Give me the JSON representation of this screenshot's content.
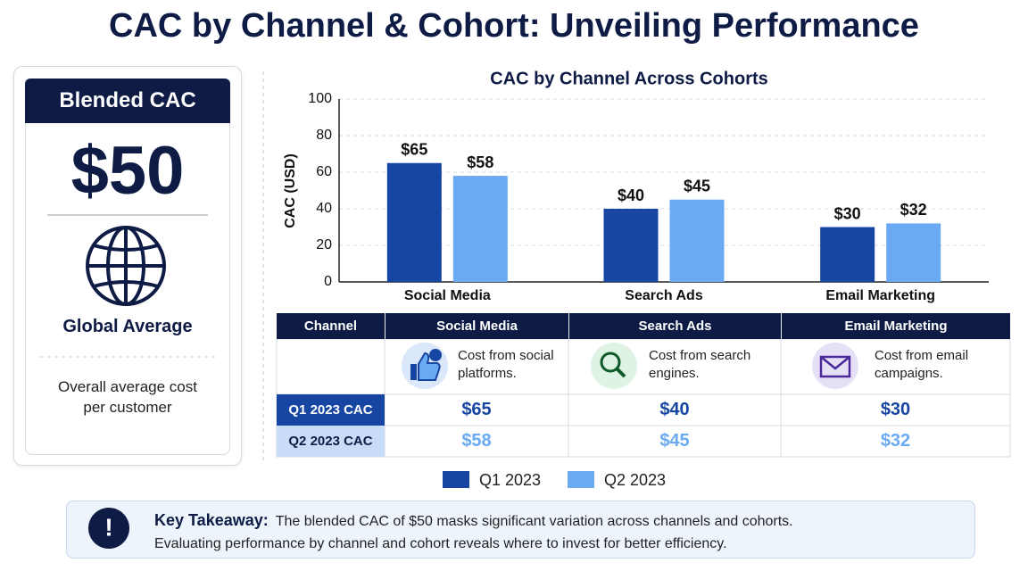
{
  "title": "CAC by Channel & Cohort: Unveiling Performance",
  "kpi": {
    "header": "Blended CAC",
    "value": "$50",
    "label": "Global Average",
    "description": "Overall average cost per customer"
  },
  "chart_data": {
    "type": "bar",
    "title": "CAC by Channel Across Cohorts",
    "y_label": "CAC (USD)",
    "categories": [
      "Social Media",
      "Search Ads",
      "Email Marketing"
    ],
    "series": [
      {
        "name": "Q1 2023",
        "color": "#1746a2",
        "values": [
          65,
          40,
          30
        ],
        "value_labels": [
          "$65",
          "$40",
          "$30"
        ]
      },
      {
        "name": "Q2 2023",
        "color": "#6aaaf2",
        "values": [
          58,
          45,
          32
        ],
        "value_labels": [
          "$58",
          "$45",
          "$32"
        ]
      }
    ],
    "ylim": [
      0,
      100
    ],
    "yticks": [
      0,
      20,
      40,
      60,
      80,
      100
    ],
    "grid": true,
    "legend": "bottom"
  },
  "table": {
    "header": [
      "Channel",
      "Social Media",
      "Search Ads",
      "Email Marketing"
    ],
    "descriptions": [
      "Cost from social platforms.",
      "Cost from search engines.",
      "Cost from email campaigns."
    ],
    "rows": [
      [
        "Q1 2023 CAC",
        "$65",
        "$40",
        "$30"
      ],
      [
        "Q2 2023 CAC",
        "$58",
        "$45",
        "$32"
      ]
    ]
  },
  "takeaway": {
    "label": "Key Takeaway:",
    "lines": [
      "The blended CAC of $50 masks significant variation across channels and cohorts.",
      "Evaluating performance by channel and cohort reveals where to invest for better efficiency."
    ]
  }
}
